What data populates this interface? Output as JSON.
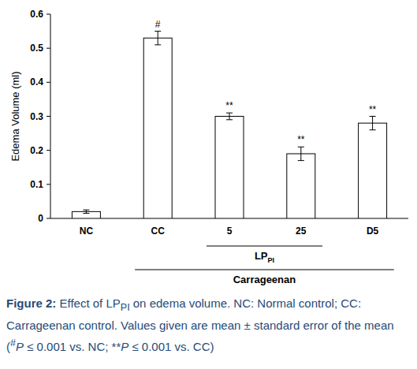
{
  "chart_data": {
    "type": "bar",
    "categories": [
      "NC",
      "CC",
      "5",
      "25",
      "D5"
    ],
    "values": [
      0.02,
      0.53,
      0.3,
      0.19,
      0.28
    ],
    "errors": [
      0.005,
      0.02,
      0.01,
      0.02,
      0.02
    ],
    "significance": [
      null,
      "#",
      "**",
      "**",
      "**"
    ],
    "color": "#ffffff",
    "y_label": "Edema Volume (ml)",
    "ylim": [
      0,
      0.6
    ],
    "yticks": [
      0,
      0.1,
      0.2,
      0.3,
      0.4,
      0.5,
      0.6
    ],
    "grid": false,
    "groups": [
      {
        "label": "LP",
        "subscript": "PI",
        "categories": [
          "5",
          "25"
        ]
      },
      {
        "label": "Carrageenan",
        "categories": [
          "CC",
          "5",
          "25",
          "D5"
        ]
      }
    ],
    "caption_label": "Figure 2:",
    "caption": [
      " Effect of LP",
      {
        "sub": "PI"
      },
      " on edema volume. NC: Normal control; CC: Carrageenan control. Values given are mean ± standard error of the mean (",
      {
        "sup": "#"
      },
      {
        "italic": "P"
      },
      " ≤ 0.001 vs. NC; **",
      {
        "italic": "P"
      },
      " ≤ 0.001 vs. CC)"
    ]
  }
}
